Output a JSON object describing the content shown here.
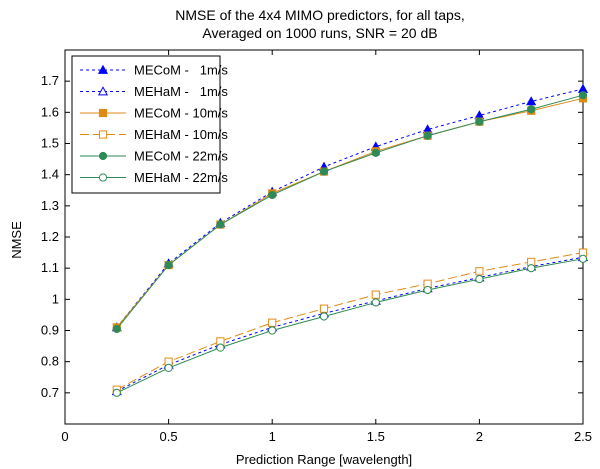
{
  "chart_data": {
    "type": "line",
    "title": [
      "NMSE of the 4x4 MIMO predictors, for all taps,",
      "Averaged on 1000 runs,  SNR = 20 dB"
    ],
    "xlabel": "Prediction Range [wavelength]",
    "ylabel": "NMSE",
    "xlim": [
      0,
      2.5
    ],
    "ylim": [
      0.6,
      1.8
    ],
    "xticks": [
      0,
      0.5,
      1,
      1.5,
      2,
      2.5
    ],
    "xtick_labels": [
      "0",
      "0.5",
      "1",
      "1.5",
      "2",
      "2.5"
    ],
    "yticks": [
      0.7,
      0.8,
      0.9,
      1.0,
      1.1,
      1.2,
      1.3,
      1.4,
      1.5,
      1.6,
      1.7
    ],
    "ytick_labels": [
      "0.7",
      "0.8",
      "0.9",
      "1",
      "1.1",
      "1.2",
      "1.3",
      "1.4",
      "1.5",
      "1.6",
      "1.7"
    ],
    "grid": false,
    "legend_position": "top-left",
    "x": [
      0.25,
      0.5,
      0.75,
      1.0,
      1.25,
      1.5,
      1.75,
      2.0,
      2.25,
      2.5
    ],
    "series": [
      {
        "name": "MECoM -   1m/s",
        "color": "#0000ff",
        "dash": "3,3",
        "marker": "triangle",
        "filled": true,
        "values": [
          0.91,
          1.115,
          1.245,
          1.345,
          1.425,
          1.49,
          1.545,
          1.59,
          1.635,
          1.675
        ]
      },
      {
        "name": "MEHaM -   1m/s",
        "color": "#0000ff",
        "dash": "3,3",
        "marker": "triangle",
        "filled": false,
        "values": [
          0.705,
          0.79,
          0.855,
          0.91,
          0.955,
          0.995,
          1.035,
          1.07,
          1.105,
          1.135
        ]
      },
      {
        "name": "MECoM - 10m/s",
        "color": "#e08a16",
        "dash": "",
        "marker": "square",
        "filled": true,
        "values": [
          0.91,
          1.11,
          1.24,
          1.34,
          1.41,
          1.475,
          1.525,
          1.57,
          1.605,
          1.645
        ]
      },
      {
        "name": "MEHaM - 10m/s",
        "color": "#e08a16",
        "dash": "9,4",
        "marker": "square",
        "filled": false,
        "values": [
          0.71,
          0.8,
          0.865,
          0.925,
          0.97,
          1.015,
          1.05,
          1.09,
          1.12,
          1.15
        ]
      },
      {
        "name": "MECoM - 22m/s",
        "color": "#2e8b57",
        "dash": "",
        "marker": "circle",
        "filled": true,
        "values": [
          0.905,
          1.11,
          1.24,
          1.335,
          1.41,
          1.47,
          1.525,
          1.57,
          1.61,
          1.655
        ]
      },
      {
        "name": "MEHaM - 22m/s",
        "color": "#2e8b57",
        "dash": "",
        "marker": "circle",
        "filled": false,
        "values": [
          0.7,
          0.78,
          0.845,
          0.9,
          0.945,
          0.99,
          1.03,
          1.065,
          1.1,
          1.13
        ]
      }
    ]
  }
}
